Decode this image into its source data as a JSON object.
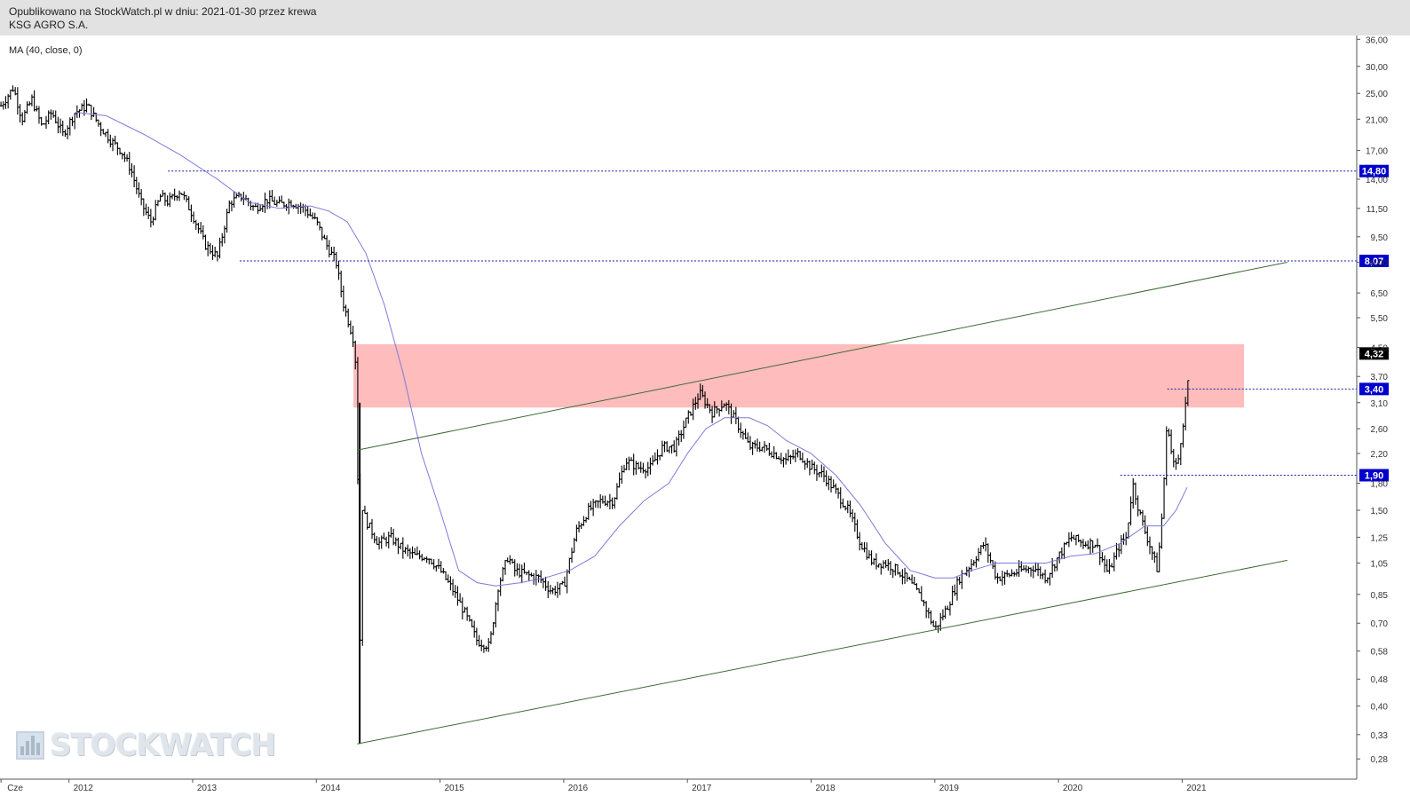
{
  "header": {
    "published": "Opublikowano na StockWatch.pl w dniu: 2021-01-30 przez krewa",
    "ticker_name": "KSG AGRO S.A."
  },
  "indicator_label": "MA (40, close, 0)",
  "watermark": "STOCKWATCH",
  "colors": {
    "candles": "#000000",
    "ma": "#7b7bdc",
    "trendline": "#3d6b35",
    "hline": "#1a1aa8",
    "zone": "#ff6b6b",
    "price_tag": "#0000cc",
    "last_price_tag": "#000000"
  },
  "chart_data": {
    "type": "line",
    "title": "",
    "xlabel": "",
    "ylabel": "",
    "scale": "log",
    "ylim": [
      0.25,
      37
    ],
    "x_ticks": [
      {
        "label": "Cze",
        "date": 2011.45
      },
      {
        "label": "2012",
        "date": 2012.0
      },
      {
        "label": "2013",
        "date": 2013.0
      },
      {
        "label": "2014",
        "date": 2014.0
      },
      {
        "label": "2015",
        "date": 2015.0
      },
      {
        "label": "2016",
        "date": 2016.0
      },
      {
        "label": "2017",
        "date": 2017.0
      },
      {
        "label": "2018",
        "date": 2018.0
      },
      {
        "label": "2019",
        "date": 2019.0
      },
      {
        "label": "2020",
        "date": 2020.0
      },
      {
        "label": "2021",
        "date": 2021.0
      }
    ],
    "y_ticks": [
      "36,00",
      "30,00",
      "25,00",
      "21,00",
      "17,00",
      "14,00",
      "11,50",
      "9,50",
      "8,00",
      "6,50",
      "5,50",
      "4,50",
      "3,70",
      "3,10",
      "2,60",
      "2,20",
      "1,80",
      "1,50",
      "1,25",
      "1,05",
      "0,85",
      "0,70",
      "0,58",
      "0,48",
      "0,40",
      "0,33",
      "0,28"
    ],
    "price_series": {
      "dates": [
        2011.45,
        2011.55,
        2011.62,
        2011.7,
        2011.78,
        2011.86,
        2011.95,
        2012.05,
        2012.15,
        2012.25,
        2012.35,
        2012.42,
        2012.5,
        2012.58,
        2012.66,
        2012.74,
        2012.8,
        2012.9,
        2013.0,
        2013.1,
        2013.2,
        2013.3,
        2013.4,
        2013.5,
        2013.6,
        2013.7,
        2013.8,
        2013.9,
        2014.0,
        2014.08,
        2014.16,
        2014.22,
        2014.27,
        2014.31,
        2014.33,
        2014.35,
        2014.36,
        2014.4,
        2014.5,
        2014.6,
        2014.7,
        2014.8,
        2014.9,
        2015.0,
        2015.1,
        2015.2,
        2015.3,
        2015.4,
        2015.47,
        2015.55,
        2015.6,
        2015.7,
        2015.8,
        2015.9,
        2016.0,
        2016.1,
        2016.2,
        2016.3,
        2016.4,
        2016.5,
        2016.6,
        2016.7,
        2016.8,
        2016.9,
        2017.0,
        2017.1,
        2017.2,
        2017.3,
        2017.4,
        2017.5,
        2017.6,
        2017.7,
        2017.8,
        2017.9,
        2018.0,
        2018.1,
        2018.2,
        2018.3,
        2018.4,
        2018.5,
        2018.6,
        2018.7,
        2018.8,
        2018.9,
        2019.0,
        2019.1,
        2019.2,
        2019.3,
        2019.4,
        2019.5,
        2019.6,
        2019.7,
        2019.8,
        2019.9,
        2020.0,
        2020.1,
        2020.2,
        2020.3,
        2020.4,
        2020.5,
        2020.55,
        2020.6,
        2020.65,
        2020.7,
        2020.75,
        2020.8,
        2020.84,
        2020.88,
        2020.92,
        2020.96,
        2021.0,
        2021.04,
        2021.06
      ],
      "values": [
        23,
        26,
        21,
        24,
        20,
        22,
        19,
        22,
        23,
        20,
        18,
        17,
        15,
        12,
        10.5,
        12.5,
        12,
        13,
        11,
        9,
        8.3,
        12,
        12.5,
        11.5,
        12.2,
        11.8,
        12,
        11.5,
        10.5,
        9,
        8,
        6,
        5.2,
        4.6,
        3.1,
        0.35,
        1.6,
        1.4,
        1.2,
        1.25,
        1.15,
        1.1,
        1.1,
        1.0,
        0.88,
        0.75,
        0.62,
        0.6,
        0.9,
        1.1,
        1.0,
        0.97,
        0.95,
        0.87,
        0.9,
        1.3,
        1.5,
        1.6,
        1.6,
        2.1,
        2.0,
        2.0,
        2.3,
        2.3,
        2.8,
        3.3,
        2.9,
        3.1,
        2.7,
        2.3,
        2.3,
        2.2,
        2.1,
        2.2,
        2.0,
        1.9,
        1.7,
        1.5,
        1.2,
        1.05,
        1.05,
        1.0,
        0.92,
        0.82,
        0.67,
        0.78,
        0.95,
        1.05,
        1.2,
        0.95,
        0.97,
        1.0,
        1.02,
        0.95,
        1.1,
        1.25,
        1.2,
        1.2,
        0.98,
        1.2,
        1.25,
        1.8,
        1.5,
        1.3,
        1.15,
        1.0,
        1.5,
        2.8,
        2.1,
        2.0,
        2.6,
        3.3,
        4.32
      ]
    },
    "ma_series": {
      "name": "MA (40, close, 0)",
      "dates": [
        2012.05,
        2012.3,
        2012.6,
        2012.9,
        2013.2,
        2013.45,
        2013.7,
        2013.95,
        2014.1,
        2014.25,
        2014.4,
        2014.55,
        2014.7,
        2014.85,
        2015.0,
        2015.15,
        2015.3,
        2015.45,
        2015.65,
        2015.85,
        2016.05,
        2016.25,
        2016.45,
        2016.65,
        2016.85,
        2017.0,
        2017.15,
        2017.3,
        2017.5,
        2017.65,
        2017.8,
        2018.0,
        2018.2,
        2018.4,
        2018.6,
        2018.8,
        2019.0,
        2019.15,
        2019.3,
        2019.5,
        2019.7,
        2019.9,
        2020.1,
        2020.3,
        2020.5,
        2020.7,
        2020.85,
        2020.95,
        2021.04
      ],
      "values": [
        22,
        21.5,
        19,
        16.5,
        14,
        12,
        11.5,
        11.7,
        11.3,
        10.5,
        8.5,
        6,
        3.8,
        2.2,
        1.5,
        1.0,
        0.92,
        0.9,
        0.92,
        0.95,
        1.0,
        1.1,
        1.35,
        1.6,
        1.8,
        2.2,
        2.6,
        2.8,
        2.8,
        2.65,
        2.4,
        2.2,
        1.9,
        1.55,
        1.2,
        1.0,
        0.95,
        0.95,
        1.0,
        1.05,
        1.05,
        1.05,
        1.1,
        1.12,
        1.2,
        1.35,
        1.35,
        1.5,
        1.75
      ]
    },
    "levels": [
      {
        "value": 14.8,
        "label": "14,80",
        "from": 2012.8
      },
      {
        "value": 8.07,
        "label": "8,07",
        "from": 2013.38
      },
      {
        "value": 3.4,
        "label": "3,40",
        "from": 2020.88
      },
      {
        "value": 1.9,
        "label": "1,90",
        "from": 2020.5
      }
    ],
    "last_price": {
      "value": 4.32,
      "label": "4,32"
    },
    "zone": {
      "x_from": 2014.3,
      "x_to": 2021.5,
      "y_low": 3.0,
      "y_high": 4.6
    },
    "trendlines": [
      {
        "x1": 2014.33,
        "y1": 2.25,
        "x2": 2021.85,
        "y2": 8.0
      },
      {
        "x1": 2014.33,
        "y1": 0.31,
        "x2": 2021.85,
        "y2": 1.07
      }
    ],
    "grid": false,
    "legend": "none"
  }
}
